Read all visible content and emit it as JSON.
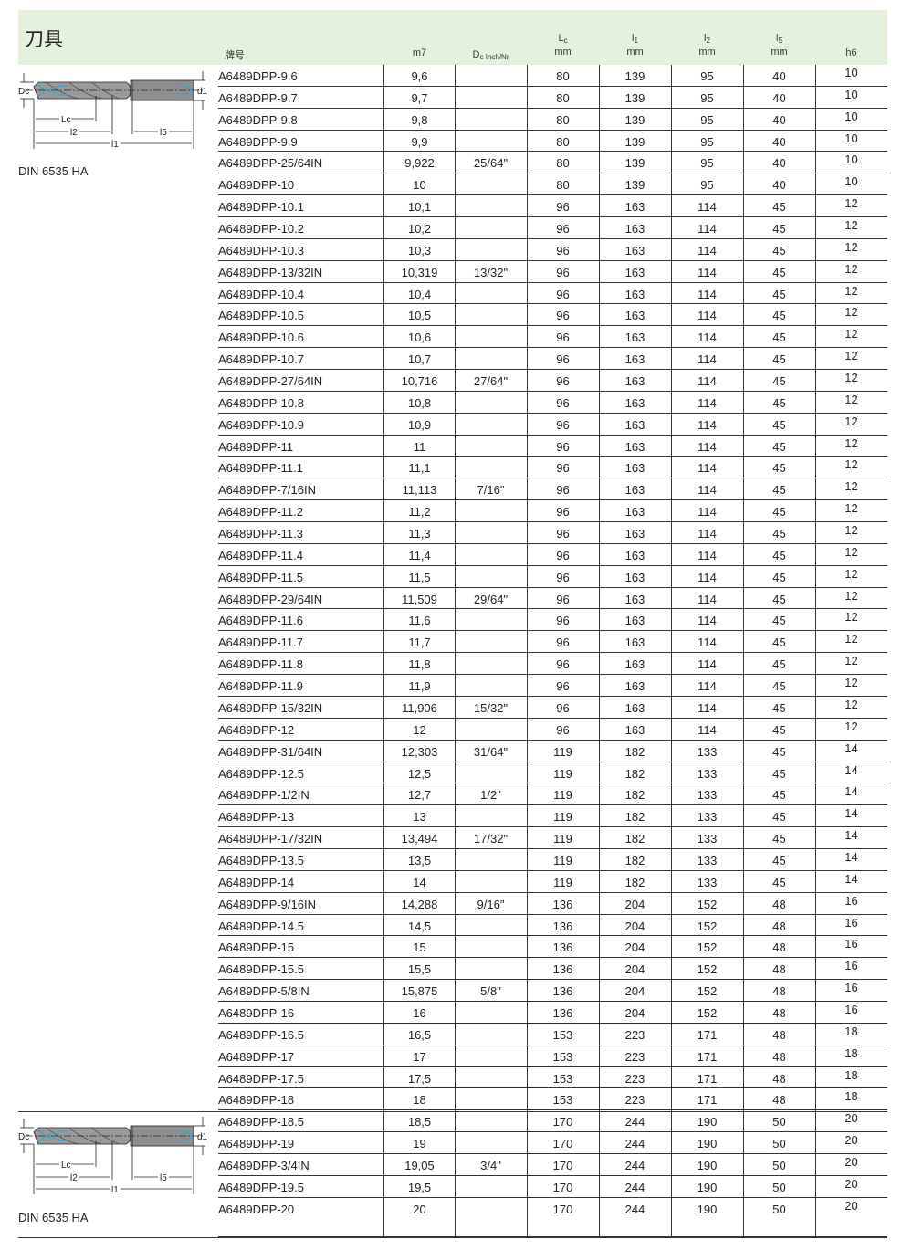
{
  "header": {
    "title": "刀具",
    "columns": [
      {
        "main": "牌号"
      },
      {
        "main": "m7"
      },
      {
        "main": "D",
        "sub": "c Inch/Nr"
      },
      {
        "main": "L",
        "sub": "c",
        "unit": "mm"
      },
      {
        "main": "l",
        "sub": "1",
        "unit": "mm"
      },
      {
        "main": "l",
        "sub": "2",
        "unit": "mm"
      },
      {
        "main": "l",
        "sub": "5",
        "unit": "mm"
      },
      {
        "main": "h6"
      }
    ]
  },
  "drawing": {
    "labels": {
      "dc": "Dc",
      "d1": "d1",
      "lc": "Lc",
      "l2": "l2",
      "l5": "l5",
      "l1": "l1"
    },
    "accent_color": "#29a9e0"
  },
  "groups": [
    {
      "standard": "DIN 6535 HA"
    },
    {
      "standard": "DIN 6535 HA"
    }
  ],
  "rows": [
    [
      "A6489DPP-9.6",
      "9,6",
      "",
      "80",
      "139",
      "95",
      "40",
      "10"
    ],
    [
      "A6489DPP-9.7",
      "9,7",
      "",
      "80",
      "139",
      "95",
      "40",
      "10"
    ],
    [
      "A6489DPP-9.8",
      "9,8",
      "",
      "80",
      "139",
      "95",
      "40",
      "10"
    ],
    [
      "A6489DPP-9.9",
      "9,9",
      "",
      "80",
      "139",
      "95",
      "40",
      "10"
    ],
    [
      "A6489DPP-25/64IN",
      "9,922",
      "25/64\"",
      "80",
      "139",
      "95",
      "40",
      "10"
    ],
    [
      "A6489DPP-10",
      "10",
      "",
      "80",
      "139",
      "95",
      "40",
      "10"
    ],
    [
      "A6489DPP-10.1",
      "10,1",
      "",
      "96",
      "163",
      "114",
      "45",
      "12"
    ],
    [
      "A6489DPP-10.2",
      "10,2",
      "",
      "96",
      "163",
      "114",
      "45",
      "12"
    ],
    [
      "A6489DPP-10.3",
      "10,3",
      "",
      "96",
      "163",
      "114",
      "45",
      "12"
    ],
    [
      "A6489DPP-13/32IN",
      "10,319",
      "13/32\"",
      "96",
      "163",
      "114",
      "45",
      "12"
    ],
    [
      "A6489DPP-10.4",
      "10,4",
      "",
      "96",
      "163",
      "114",
      "45",
      "12"
    ],
    [
      "A6489DPP-10.5",
      "10,5",
      "",
      "96",
      "163",
      "114",
      "45",
      "12"
    ],
    [
      "A6489DPP-10.6",
      "10,6",
      "",
      "96",
      "163",
      "114",
      "45",
      "12"
    ],
    [
      "A6489DPP-10.7",
      "10,7",
      "",
      "96",
      "163",
      "114",
      "45",
      "12"
    ],
    [
      "A6489DPP-27/64IN",
      "10,716",
      "27/64\"",
      "96",
      "163",
      "114",
      "45",
      "12"
    ],
    [
      "A6489DPP-10.8",
      "10,8",
      "",
      "96",
      "163",
      "114",
      "45",
      "12"
    ],
    [
      "A6489DPP-10.9",
      "10,9",
      "",
      "96",
      "163",
      "114",
      "45",
      "12"
    ],
    [
      "A6489DPP-11",
      "11",
      "",
      "96",
      "163",
      "114",
      "45",
      "12"
    ],
    [
      "A6489DPP-11.1",
      "11,1",
      "",
      "96",
      "163",
      "114",
      "45",
      "12"
    ],
    [
      "A6489DPP-7/16IN",
      "11,113",
      "7/16\"",
      "96",
      "163",
      "114",
      "45",
      "12"
    ],
    [
      "A6489DPP-11.2",
      "11,2",
      "",
      "96",
      "163",
      "114",
      "45",
      "12"
    ],
    [
      "A6489DPP-11.3",
      "11,3",
      "",
      "96",
      "163",
      "114",
      "45",
      "12"
    ],
    [
      "A6489DPP-11.4",
      "11,4",
      "",
      "96",
      "163",
      "114",
      "45",
      "12"
    ],
    [
      "A6489DPP-11.5",
      "11,5",
      "",
      "96",
      "163",
      "114",
      "45",
      "12"
    ],
    [
      "A6489DPP-29/64IN",
      "11,509",
      "29/64\"",
      "96",
      "163",
      "114",
      "45",
      "12"
    ],
    [
      "A6489DPP-11.6",
      "11,6",
      "",
      "96",
      "163",
      "114",
      "45",
      "12"
    ],
    [
      "A6489DPP-11.7",
      "11,7",
      "",
      "96",
      "163",
      "114",
      "45",
      "12"
    ],
    [
      "A6489DPP-11.8",
      "11,8",
      "",
      "96",
      "163",
      "114",
      "45",
      "12"
    ],
    [
      "A6489DPP-11.9",
      "11,9",
      "",
      "96",
      "163",
      "114",
      "45",
      "12"
    ],
    [
      "A6489DPP-15/32IN",
      "11,906",
      "15/32\"",
      "96",
      "163",
      "114",
      "45",
      "12"
    ],
    [
      "A6489DPP-12",
      "12",
      "",
      "96",
      "163",
      "114",
      "45",
      "12"
    ],
    [
      "A6489DPP-31/64IN",
      "12,303",
      "31/64\"",
      "119",
      "182",
      "133",
      "45",
      "14"
    ],
    [
      "A6489DPP-12.5",
      "12,5",
      "",
      "119",
      "182",
      "133",
      "45",
      "14"
    ],
    [
      "A6489DPP-1/2IN",
      "12,7",
      "1/2\"",
      "119",
      "182",
      "133",
      "45",
      "14"
    ],
    [
      "A6489DPP-13",
      "13",
      "",
      "119",
      "182",
      "133",
      "45",
      "14"
    ],
    [
      "A6489DPP-17/32IN",
      "13,494",
      "17/32\"",
      "119",
      "182",
      "133",
      "45",
      "14"
    ],
    [
      "A6489DPP-13.5",
      "13,5",
      "",
      "119",
      "182",
      "133",
      "45",
      "14"
    ],
    [
      "A6489DPP-14",
      "14",
      "",
      "119",
      "182",
      "133",
      "45",
      "14"
    ],
    [
      "A6489DPP-9/16IN",
      "14,288",
      "9/16\"",
      "136",
      "204",
      "152",
      "48",
      "16"
    ],
    [
      "A6489DPP-14.5",
      "14,5",
      "",
      "136",
      "204",
      "152",
      "48",
      "16"
    ],
    [
      "A6489DPP-15",
      "15",
      "",
      "136",
      "204",
      "152",
      "48",
      "16"
    ],
    [
      "A6489DPP-15.5",
      "15,5",
      "",
      "136",
      "204",
      "152",
      "48",
      "16"
    ],
    [
      "A6489DPP-5/8IN",
      "15,875",
      "5/8\"",
      "136",
      "204",
      "152",
      "48",
      "16"
    ],
    [
      "A6489DPP-16",
      "16",
      "",
      "136",
      "204",
      "152",
      "48",
      "16"
    ],
    [
      "A6489DPP-16.5",
      "16,5",
      "",
      "153",
      "223",
      "171",
      "48",
      "18"
    ],
    [
      "A6489DPP-17",
      "17",
      "",
      "153",
      "223",
      "171",
      "48",
      "18"
    ],
    [
      "A6489DPP-17.5",
      "17,5",
      "",
      "153",
      "223",
      "171",
      "48",
      "18"
    ],
    [
      "A6489DPP-18",
      "18",
      "",
      "153",
      "223",
      "171",
      "48",
      "18"
    ],
    [
      "A6489DPP-18.5",
      "18,5",
      "",
      "170",
      "244",
      "190",
      "50",
      "20"
    ],
    [
      "A6489DPP-19",
      "19",
      "",
      "170",
      "244",
      "190",
      "50",
      "20"
    ],
    [
      "A6489DPP-3/4IN",
      "19,05",
      "3/4\"",
      "170",
      "244",
      "190",
      "50",
      "20"
    ],
    [
      "A6489DPP-19.5",
      "19,5",
      "",
      "170",
      "244",
      "190",
      "50",
      "20"
    ],
    [
      "A6489DPP-20",
      "20",
      "",
      "170",
      "244",
      "190",
      "50",
      "20"
    ]
  ]
}
